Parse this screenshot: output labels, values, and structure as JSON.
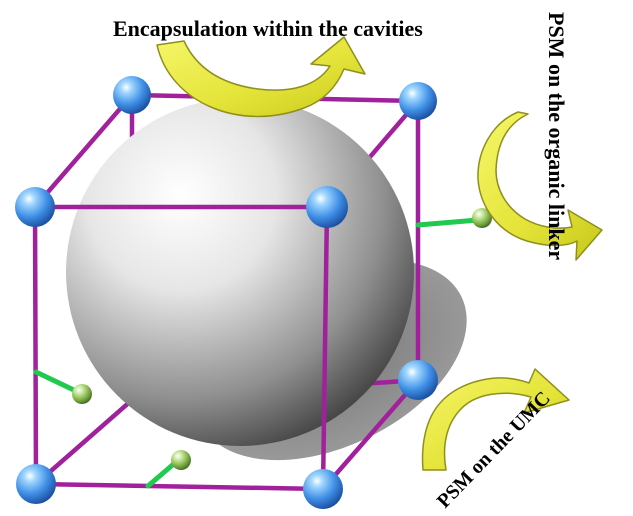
{
  "labels": {
    "top": "Encapsulation within the cavities",
    "right": "PSM on the organic linker",
    "bottom_right": "PSM on the UMC"
  },
  "colors": {
    "framework_edge": "#a0219b",
    "node_sphere": "#3f8fe6",
    "arrow_fill": "#e4e43a",
    "arrow_stroke": "#8f8f1d",
    "big_sphere": "#9a9a9a",
    "shadow": "#6a6a6a",
    "linker_bond": "#22c94f",
    "linker_ball": "#6f9e3b"
  },
  "icons": {
    "framework_nodes": "blue-sphere-icon",
    "encapsulated_guest": "large-gray-sphere-icon",
    "functional_groups": "green-ball-and-stick-icon",
    "arrows": "curved-yellow-arrow-icon"
  }
}
